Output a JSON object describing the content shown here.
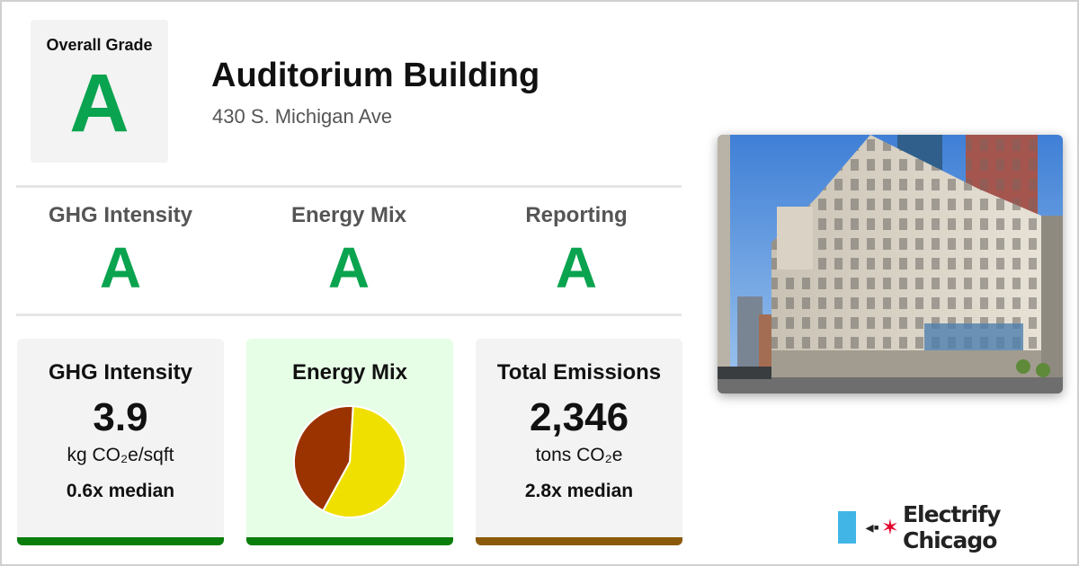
{
  "overall": {
    "label": "Overall Grade",
    "grade": "A"
  },
  "building": {
    "name": "Auditorium Building",
    "address": "430 S. Michigan Ave"
  },
  "grades": [
    {
      "name": "GHG Intensity",
      "grade": "A"
    },
    {
      "name": "Energy Mix",
      "grade": "A"
    },
    {
      "name": "Reporting",
      "grade": "A"
    }
  ],
  "cards": {
    "ghg": {
      "title": "GHG Intensity",
      "value": "3.9",
      "unit": "kg CO₂e/sqft",
      "median": "0.6x median"
    },
    "energy_mix": {
      "title": "Energy Mix",
      "slices": [
        {
          "fraction": 0.57,
          "color": "#f0e000"
        },
        {
          "fraction": 0.43,
          "color": "#9b3300"
        }
      ]
    },
    "emissions": {
      "title": "Total Emissions",
      "value": "2,346",
      "unit": "tons CO₂e",
      "median": "2.8x median"
    }
  },
  "brand": {
    "name": "Electrify Chicago",
    "plug_icon": "◂▪",
    "star_icon": "✶"
  },
  "colors": {
    "grade_green": "#0aa34f",
    "good_bar": "#0a7d0a",
    "warn_bar": "#8b5a0a",
    "energy_card_bg": "#e6fde6",
    "brand_blue": "#41b6e6",
    "brand_red": "#e4002b"
  }
}
